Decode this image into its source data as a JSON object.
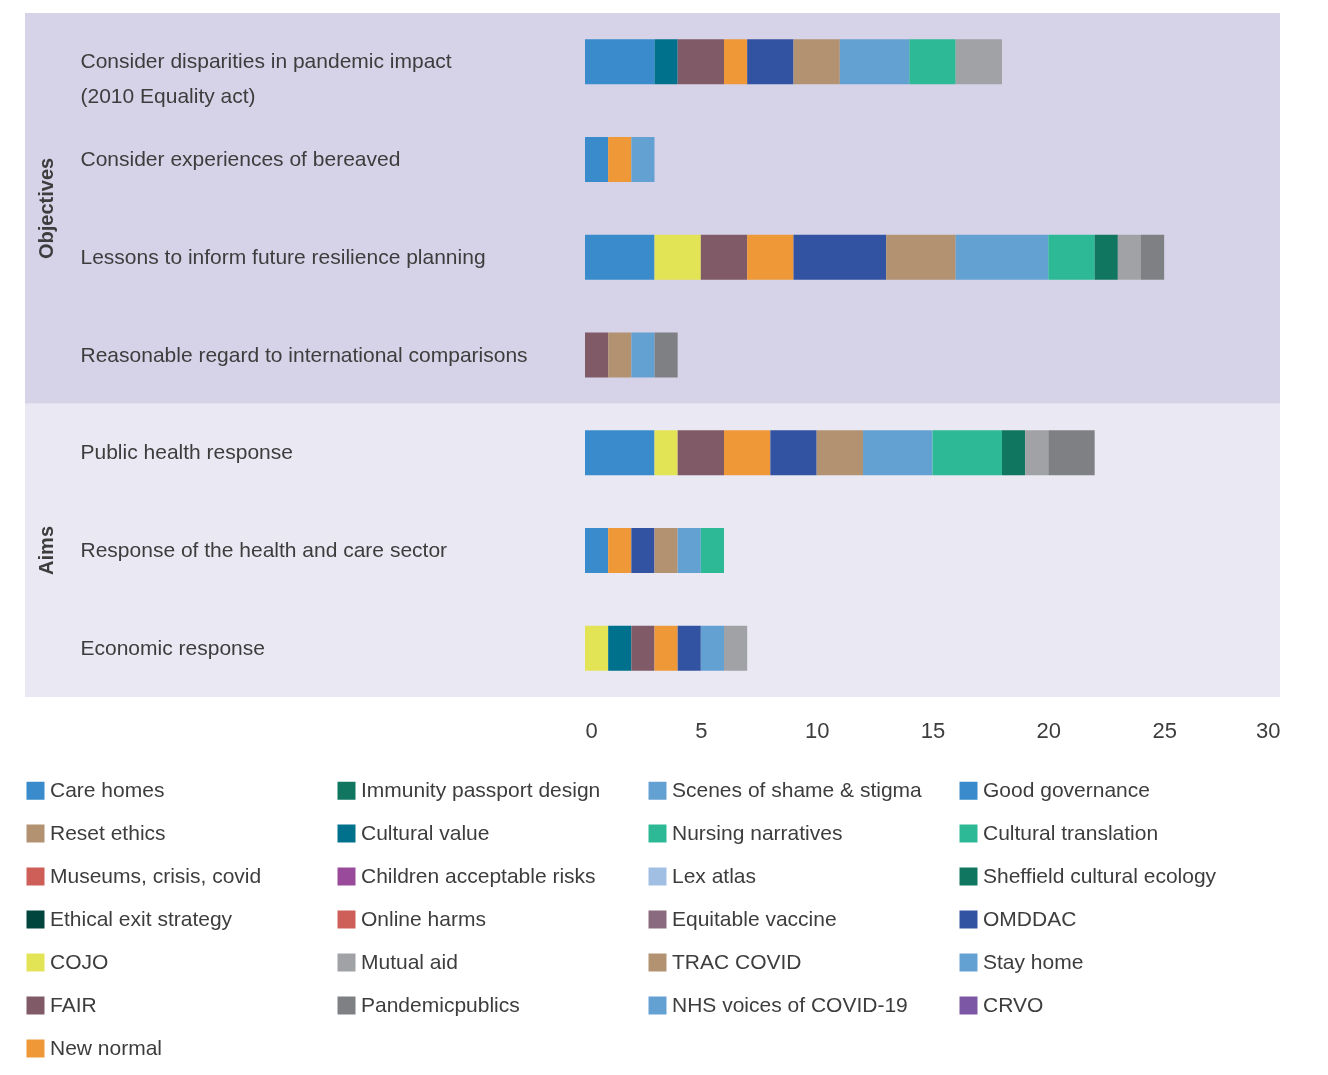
{
  "chart_data": {
    "type": "bar",
    "orientation": "horizontal",
    "stacked": true,
    "categories": [
      "Consider disparities in pandemic impact\n(2010 Equality act)",
      "Consider experiences of bereaved",
      "Lessons to inform future resilience planning",
      "Reasonable regard to international comparisons",
      "Public health response",
      "Response of the health and care sector",
      "Economic response"
    ],
    "series": [
      {
        "name": "Care homes",
        "color": "#398bcb",
        "values": [
          3,
          1,
          3,
          0,
          3,
          1,
          0
        ]
      },
      {
        "name": "COJO",
        "color": "#e3e356",
        "values": [
          0,
          0,
          2,
          0,
          1,
          0,
          1
        ]
      },
      {
        "name": "Cultural value",
        "color": "#00718c",
        "values": [
          1,
          0,
          0,
          0,
          0,
          0,
          1
        ]
      },
      {
        "name": "FAIR",
        "color": "#805a66",
        "values": [
          2,
          0,
          2,
          1,
          2,
          0,
          1
        ]
      },
      {
        "name": "Lex atlas",
        "color": "#a0bfe3",
        "values": [
          0,
          0,
          0,
          0,
          0,
          0,
          0
        ]
      },
      {
        "name": "New normal",
        "color": "#ef9838",
        "values": [
          1,
          1,
          2,
          0,
          2,
          1,
          1
        ]
      },
      {
        "name": "OMDDAC",
        "color": "#3253a2",
        "values": [
          2,
          0,
          4,
          0,
          2,
          1,
          1
        ]
      },
      {
        "name": "Reset ethics",
        "color": "#b39271",
        "values": [
          2,
          0,
          3,
          1,
          2,
          1,
          0
        ]
      },
      {
        "name": "Stay home",
        "color": "#64a1d3",
        "values": [
          3,
          1,
          4,
          1,
          3,
          1,
          1
        ]
      },
      {
        "name": "Children acceptable risks",
        "color": "#9a4a9b",
        "values": [
          0,
          0,
          0,
          0,
          0,
          0,
          0
        ]
      },
      {
        "name": "CRVO",
        "color": "#7b57a5",
        "values": [
          0,
          0,
          0,
          0,
          0,
          0,
          0
        ]
      },
      {
        "name": "Equitable vaccine",
        "color": "#8a6a7e",
        "values": [
          0,
          0,
          0,
          0,
          0,
          0,
          0
        ]
      },
      {
        "name": "Good governance",
        "color": "#398bcb",
        "values": [
          0,
          0,
          0,
          0,
          0,
          0,
          0
        ]
      },
      {
        "name": "Museums, crisis, covid",
        "color": "#cd5e58",
        "values": [
          0,
          0,
          0,
          0,
          0,
          0,
          0
        ]
      },
      {
        "name": "NHS voices of COVID-19",
        "color": "#64a1d3",
        "values": [
          0,
          0,
          0,
          0,
          0,
          0,
          0
        ]
      },
      {
        "name": "Online harms",
        "color": "#cd5e58",
        "values": [
          0,
          0,
          0,
          0,
          0,
          0,
          0
        ]
      },
      {
        "name": "Scenes of shame & stigma",
        "color": "#64a1d3",
        "values": [
          0,
          0,
          0,
          0,
          0,
          0,
          0
        ]
      },
      {
        "name": "TRAC COVID",
        "color": "#b39271",
        "values": [
          0,
          0,
          0,
          0,
          0,
          0,
          0
        ]
      },
      {
        "name": "Cultural translation",
        "color": "#2db996",
        "values": [
          2,
          0,
          2,
          0,
          3,
          1,
          0
        ]
      },
      {
        "name": "Ethical exit strategy",
        "color": "#00453d",
        "values": [
          0,
          0,
          0,
          0,
          0,
          0,
          0
        ]
      },
      {
        "name": "Immunity passport design",
        "color": "#107660",
        "values": [
          0,
          0,
          1,
          0,
          1,
          0,
          0
        ]
      },
      {
        "name": "Mutual aid",
        "color": "#a0a2a5",
        "values": [
          2,
          0,
          1,
          0,
          1,
          0,
          1
        ]
      },
      {
        "name": "Nursing narratives",
        "color": "#2db996",
        "values": [
          0,
          0,
          0,
          0,
          0,
          0,
          0
        ]
      },
      {
        "name": "Pandemicpublics",
        "color": "#7f8084",
        "values": [
          0,
          0,
          1,
          1,
          2,
          0,
          0
        ]
      },
      {
        "name": "Sheffield cultural ecology",
        "color": "#107660",
        "values": [
          0,
          0,
          0,
          0,
          0,
          0,
          0
        ]
      }
    ],
    "xlim": [
      0,
      30
    ],
    "xticks": [
      0,
      5,
      10,
      15,
      20,
      25,
      30
    ],
    "bands": [
      {
        "axis": "y",
        "from": "Consider disparities in pandemic impact\n(2010 Equality act)",
        "to": "Reasonable regard to international comparisons",
        "label": "Objectives",
        "color": "#d6d3e8"
      },
      {
        "axis": "y",
        "from": "Public health response",
        "to": "Economic response",
        "label": "Aims",
        "color": "#e9e8f3"
      }
    ],
    "legend": "bottom"
  }
}
